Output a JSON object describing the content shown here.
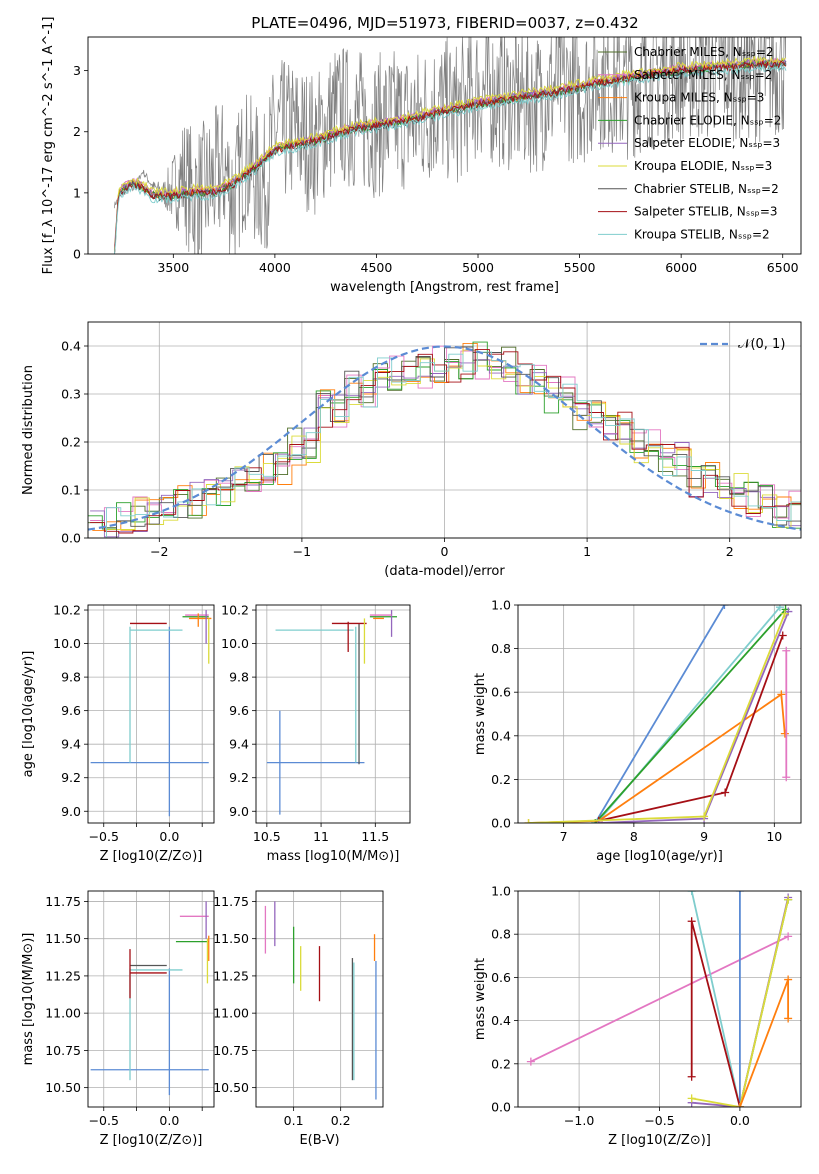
{
  "figure": {
    "title": "PLATE=0496, MJD=51973, FIBERID=0037, z=0.432"
  },
  "chart_data": [
    {
      "id": "spectrum",
      "type": "line",
      "xlabel": "wavelength [Angstrom, rest frame]",
      "ylabel": "Flux [f_λ 10^-17 erg cm^-2 s^-1 A^-1]",
      "xlim": [
        3080,
        6590
      ],
      "ylim": [
        0,
        3.55
      ],
      "xticks": [
        3500,
        4000,
        4500,
        5000,
        5500,
        6000,
        6500
      ],
      "yticks": [
        0,
        1,
        2,
        3
      ],
      "grid": false,
      "legend_position": "top-right",
      "data": {
        "x": [
          3210,
          3250,
          3300,
          3350,
          3400,
          3450,
          3500,
          3550,
          3600,
          3650,
          3700,
          3750,
          3800,
          3850,
          3900,
          3950,
          4000,
          4100,
          4200,
          4300,
          4400,
          4500,
          4600,
          4700,
          4800,
          4900,
          5000,
          5100,
          5200,
          5300,
          5400,
          5500,
          5600,
          5700,
          5800,
          5900,
          6000,
          6100,
          6200,
          6300,
          6400,
          6500
        ],
        "y": [
          0.8,
          1.0,
          1.05,
          1.35,
          1.1,
          1.0,
          1.05,
          1.3,
          0.9,
          1.0,
          1.2,
          1.4,
          0.9,
          1.6,
          1.3,
          1.1,
          2.0,
          2.0,
          1.8,
          2.3,
          2.2,
          2.1,
          2.2,
          2.2,
          2.4,
          2.3,
          2.7,
          2.6,
          2.5,
          2.5,
          2.8,
          2.6,
          2.9,
          2.7,
          2.8,
          3.0,
          3.0,
          3.0,
          3.1,
          3.0,
          3.0,
          3.1
        ],
        "noise_amplitude": [
          0.05,
          0.05,
          0.05,
          0.05,
          0.1,
          0.2,
          0.6,
          1.0,
          1.2,
          1.2,
          1.2,
          1.2,
          1.2,
          1.2,
          1.2,
          1.2,
          1.2,
          1.2,
          1.2,
          1.2,
          1.2,
          1.2,
          1.2,
          1.2,
          1.2,
          1.2,
          1.2,
          1.2,
          1.2,
          1.2,
          1.2,
          1.2,
          1.2,
          1.2,
          1.2,
          1.2,
          1.2,
          1.2,
          1.2,
          1.2,
          1.2,
          1.2
        ],
        "color": "#808080"
      },
      "model_base": {
        "x": [
          3210,
          3230,
          3250,
          3300,
          3350,
          3400,
          3450,
          3500,
          3600,
          3700,
          3800,
          3900,
          4000,
          4200,
          4400,
          4600,
          4800,
          5000,
          5200,
          5400,
          5600,
          5800,
          6000,
          6200,
          6400,
          6520
        ],
        "y": [
          0.0,
          0.95,
          1.05,
          1.15,
          1.08,
          0.95,
          0.95,
          0.95,
          1.0,
          1.0,
          1.15,
          1.4,
          1.7,
          1.85,
          2.05,
          2.15,
          2.3,
          2.45,
          2.55,
          2.65,
          2.8,
          2.9,
          3.0,
          3.05,
          3.1,
          3.1
        ]
      },
      "series": [
        {
          "name": "Chabrier MILES, N_SSP=2",
          "color": "#4f6d2a",
          "offset": 0.03
        },
        {
          "name": "Salpeter MILES, N_SSP=2",
          "color": "#e377c2",
          "offset": 0.05
        },
        {
          "name": "Kroupa MILES, N_SSP=3",
          "color": "#ff7f0e",
          "offset": 0.02
        },
        {
          "name": "Chabrier ELODIE, N_SSP=2",
          "color": "#2ca02c",
          "offset": 0.0
        },
        {
          "name": "Salpeter ELODIE, N_SSP=3",
          "color": "#9467bd",
          "offset": 0.04
        },
        {
          "name": "Kroupa ELODIE, N_SSP=3",
          "color": "#dbdb3a",
          "offset": 0.08
        },
        {
          "name": "Chabrier STELIB, N_SSP=2",
          "color": "#555555",
          "offset": -0.02
        },
        {
          "name": "Salpeter STELIB, N_SSP=3",
          "color": "#a50f15",
          "offset": 0.0
        },
        {
          "name": "Kroupa STELIB, N_SSP=2",
          "color": "#7fcdcd",
          "offset": -0.06
        }
      ]
    },
    {
      "id": "residuals",
      "type": "line",
      "xlabel": "(data-model)/error",
      "ylabel": "Normed distribution",
      "xlim": [
        -2.5,
        2.5
      ],
      "ylim": [
        0,
        0.45
      ],
      "xticks": [
        -2,
        -1,
        0,
        1,
        2
      ],
      "yticks": [
        0.0,
        0.1,
        0.2,
        0.3,
        0.4
      ],
      "grid": true,
      "legend_position": "top-right",
      "normal_curve": {
        "name": "𝒩(0, 1)",
        "color": "#5b8bd4"
      },
      "histogram_bins": {
        "x": [
          -2.5,
          -2.3,
          -2.1,
          -1.9,
          -1.7,
          -1.5,
          -1.3,
          -1.1,
          -0.9,
          -0.7,
          -0.5,
          -0.3,
          -0.1,
          0.1,
          0.3,
          0.5,
          0.7,
          0.9,
          1.1,
          1.3,
          1.5,
          1.7,
          1.9,
          2.1,
          2.3,
          2.5
        ],
        "y": [
          0.03,
          0.05,
          0.06,
          0.08,
          0.1,
          0.12,
          0.15,
          0.19,
          0.27,
          0.31,
          0.34,
          0.35,
          0.36,
          0.37,
          0.36,
          0.33,
          0.3,
          0.26,
          0.23,
          0.19,
          0.16,
          0.12,
          0.1,
          0.08,
          0.06,
          0.05
        ]
      },
      "series_colors": [
        "#4f6d2a",
        "#e377c2",
        "#ff7f0e",
        "#2ca02c",
        "#9467bd",
        "#dbdb3a",
        "#555555",
        "#a50f15",
        "#7fcdcd"
      ]
    },
    {
      "id": "age-vs-Z",
      "type": "scatter",
      "xlabel": "Z [log10(Z/Z⊙)]",
      "ylabel": "age [log10(age/yr)]",
      "xlim": [
        -0.62,
        0.34
      ],
      "ylim": [
        8.93,
        10.23
      ],
      "xticks": [
        -0.5,
        -0.25,
        0.0,
        0.25
      ],
      "xticklabels": [
        "−0.5",
        "",
        "0.0",
        ""
      ],
      "yticks": [
        9.0,
        9.2,
        9.4,
        9.6,
        9.8,
        10.0,
        10.2
      ],
      "grid": true,
      "segments": [
        {
          "color": "#5b8bd4",
          "x1": -0.6,
          "y1": 9.29,
          "x2": 0.3,
          "y2": 9.29
        },
        {
          "color": "#5b8bd4",
          "x1": 0.0,
          "y1": 8.97,
          "x2": 0.0,
          "y2": 10.1
        },
        {
          "color": "#7fcdcd",
          "x1": -0.3,
          "y1": 9.29,
          "x2": -0.3,
          "y2": 10.1
        },
        {
          "color": "#7fcdcd",
          "x1": -0.3,
          "y1": 10.08,
          "x2": 0.1,
          "y2": 10.08
        },
        {
          "color": "#a50f15",
          "x1": -0.3,
          "y1": 10.12,
          "x2": -0.02,
          "y2": 10.12
        },
        {
          "color": "#2ca02c",
          "x1": 0.1,
          "y1": 10.16,
          "x2": 0.3,
          "y2": 10.16
        },
        {
          "color": "#ff7f0e",
          "x1": 0.15,
          "y1": 10.15,
          "x2": 0.32,
          "y2": 10.15
        },
        {
          "color": "#e377c2",
          "x1": 0.12,
          "y1": 10.17,
          "x2": 0.3,
          "y2": 10.17
        },
        {
          "color": "#9467bd",
          "x1": 0.28,
          "y1": 10.0,
          "x2": 0.28,
          "y2": 10.2
        },
        {
          "color": "#dbdb3a",
          "x1": 0.3,
          "y1": 9.88,
          "x2": 0.3,
          "y2": 10.15
        },
        {
          "color": "#ff7f0e",
          "x1": 0.22,
          "y1": 10.1,
          "x2": 0.22,
          "y2": 10.18
        }
      ]
    },
    {
      "id": "age-vs-mass",
      "type": "scatter",
      "xlabel": "mass [log10(M/M⊙)]",
      "ylabel": "",
      "xlim": [
        10.4,
        11.82
      ],
      "ylim": [
        8.93,
        10.23
      ],
      "xticks": [
        10.5,
        11.0,
        11.5
      ],
      "yticks": [
        9.0,
        9.2,
        9.4,
        9.6,
        9.8,
        10.0,
        10.2
      ],
      "grid": true,
      "segments": [
        {
          "color": "#5b8bd4",
          "x1": 10.5,
          "y1": 9.29,
          "x2": 11.4,
          "y2": 9.29
        },
        {
          "color": "#5b8bd4",
          "x1": 10.62,
          "y1": 8.98,
          "x2": 10.62,
          "y2": 9.6
        },
        {
          "color": "#7fcdcd",
          "x1": 10.58,
          "y1": 10.08,
          "x2": 11.3,
          "y2": 10.08
        },
        {
          "color": "#7fcdcd",
          "x1": 11.32,
          "y1": 9.29,
          "x2": 11.32,
          "y2": 10.1
        },
        {
          "color": "#555555",
          "x1": 11.35,
          "y1": 9.28,
          "x2": 11.35,
          "y2": 10.12
        },
        {
          "color": "#a50f15",
          "x1": 11.1,
          "y1": 10.12,
          "x2": 11.42,
          "y2": 10.12
        },
        {
          "color": "#a50f15",
          "x1": 11.25,
          "y1": 9.95,
          "x2": 11.25,
          "y2": 10.13
        },
        {
          "color": "#dbdb3a",
          "x1": 11.4,
          "y1": 9.88,
          "x2": 11.4,
          "y2": 10.15
        },
        {
          "color": "#2ca02c",
          "x1": 11.45,
          "y1": 10.16,
          "x2": 11.7,
          "y2": 10.16
        },
        {
          "color": "#9467bd",
          "x1": 11.65,
          "y1": 10.04,
          "x2": 11.65,
          "y2": 10.2
        },
        {
          "color": "#e377c2",
          "x1": 11.45,
          "y1": 10.17,
          "x2": 11.65,
          "y2": 10.17
        },
        {
          "color": "#ff7f0e",
          "x1": 11.48,
          "y1": 10.15,
          "x2": 11.58,
          "y2": 10.15
        }
      ]
    },
    {
      "id": "weight-vs-age",
      "type": "line",
      "xlabel": "age [log10(age/yr)]",
      "ylabel": "mass weight",
      "xlim": [
        6.35,
        10.38
      ],
      "ylim": [
        0,
        1.0
      ],
      "xticks": [
        7,
        8,
        9,
        10
      ],
      "yticks": [
        0.0,
        0.2,
        0.4,
        0.6,
        0.8,
        1.0
      ],
      "grid": true,
      "series": [
        {
          "color": "#5b8bd4",
          "x": [
            7.45,
            9.29
          ],
          "y": [
            0.0,
            1.0
          ]
        },
        {
          "color": "#7fcdcd",
          "x": [
            7.5,
            10.08
          ],
          "y": [
            0.01,
            0.99
          ]
        },
        {
          "color": "#2ca02c",
          "x": [
            7.45,
            10.16
          ],
          "y": [
            0.0,
            0.98
          ]
        },
        {
          "color": "#ff7f0e",
          "x": [
            6.5,
            7.5,
            10.1,
            10.15
          ],
          "y": [
            0.0,
            0.01,
            0.59,
            0.41
          ]
        },
        {
          "color": "#a50f15",
          "x": [
            7.5,
            9.3,
            10.12
          ],
          "y": [
            0.01,
            0.14,
            0.86
          ]
        },
        {
          "color": "#9467bd",
          "x": [
            7.5,
            9.0,
            10.2
          ],
          "y": [
            0.0,
            0.02,
            0.97
          ]
        },
        {
          "color": "#dbdb3a",
          "x": [
            6.5,
            9.0,
            10.15
          ],
          "y": [
            0.0,
            0.03,
            0.96
          ]
        },
        {
          "color": "#e377c2",
          "x": [
            10.17,
            10.17
          ],
          "y": [
            0.21,
            0.79
          ]
        }
      ]
    },
    {
      "id": "mass-vs-Z",
      "type": "scatter",
      "xlabel": "Z [log10(Z/Z⊙)]",
      "ylabel": "mass [log10(M/M⊙)]",
      "xlim": [
        -0.62,
        0.34
      ],
      "ylim": [
        10.37,
        11.82
      ],
      "xticks": [
        -0.5,
        -0.25,
        0.0,
        0.25
      ],
      "xticklabels": [
        "−0.5",
        "",
        "0.0",
        ""
      ],
      "yticks": [
        10.5,
        10.75,
        11.0,
        11.25,
        11.5,
        11.75
      ],
      "grid": true,
      "segments": [
        {
          "color": "#5b8bd4",
          "x1": -0.6,
          "y1": 10.62,
          "x2": 0.3,
          "y2": 10.62
        },
        {
          "color": "#5b8bd4",
          "x1": 0.0,
          "y1": 10.45,
          "x2": 0.0,
          "y2": 11.3
        },
        {
          "color": "#7fcdcd",
          "x1": -0.3,
          "y1": 10.55,
          "x2": -0.3,
          "y2": 11.3
        },
        {
          "color": "#7fcdcd",
          "x1": -0.3,
          "y1": 11.29,
          "x2": 0.1,
          "y2": 11.29
        },
        {
          "color": "#555555",
          "x1": -0.3,
          "y1": 11.32,
          "x2": -0.02,
          "y2": 11.32
        },
        {
          "color": "#a50f15",
          "x1": -0.3,
          "y1": 11.27,
          "x2": -0.02,
          "y2": 11.27
        },
        {
          "color": "#a50f15",
          "x1": -0.3,
          "y1": 11.1,
          "x2": -0.3,
          "y2": 11.43
        },
        {
          "color": "#2ca02c",
          "x1": 0.05,
          "y1": 11.48,
          "x2": 0.3,
          "y2": 11.48
        },
        {
          "color": "#e377c2",
          "x1": 0.08,
          "y1": 11.65,
          "x2": 0.3,
          "y2": 11.65
        },
        {
          "color": "#9467bd",
          "x1": 0.28,
          "y1": 11.5,
          "x2": 0.28,
          "y2": 11.75
        },
        {
          "color": "#dbdb3a",
          "x1": 0.29,
          "y1": 11.2,
          "x2": 0.29,
          "y2": 11.5
        },
        {
          "color": "#ff7f0e",
          "x1": 0.3,
          "y1": 11.35,
          "x2": 0.3,
          "y2": 11.52
        }
      ]
    },
    {
      "id": "mass-vs-ebv",
      "type": "scatter",
      "xlabel": "E(B-V)",
      "ylabel": "",
      "xlim": [
        0.02,
        0.29
      ],
      "ylim": [
        10.37,
        11.82
      ],
      "xticks": [
        0.1,
        0.2
      ],
      "yticks": [
        10.5,
        10.75,
        11.0,
        11.25,
        11.5,
        11.75
      ],
      "grid": true,
      "segments": [
        {
          "color": "#e377c2",
          "x1": 0.04,
          "y1": 11.4,
          "x2": 0.04,
          "y2": 11.72
        },
        {
          "color": "#9467bd",
          "x1": 0.06,
          "y1": 11.45,
          "x2": 0.06,
          "y2": 11.75
        },
        {
          "color": "#2ca02c",
          "x1": 0.1,
          "y1": 11.2,
          "x2": 0.1,
          "y2": 11.58
        },
        {
          "color": "#dbdb3a",
          "x1": 0.115,
          "y1": 11.15,
          "x2": 0.115,
          "y2": 11.45
        },
        {
          "color": "#a50f15",
          "x1": 0.155,
          "y1": 11.08,
          "x2": 0.155,
          "y2": 11.45
        },
        {
          "color": "#555555",
          "x1": 0.225,
          "y1": 10.55,
          "x2": 0.225,
          "y2": 11.37
        },
        {
          "color": "#7fcdcd",
          "x1": 0.228,
          "y1": 10.55,
          "x2": 0.228,
          "y2": 11.34
        },
        {
          "color": "#5b8bd4",
          "x1": 0.275,
          "y1": 10.42,
          "x2": 0.275,
          "y2": 11.35
        },
        {
          "color": "#ff7f0e",
          "x1": 0.272,
          "y1": 11.35,
          "x2": 0.272,
          "y2": 11.53
        }
      ]
    },
    {
      "id": "weight-vs-Z",
      "type": "line",
      "xlabel": "Z [log10(Z/Z⊙)]",
      "ylabel": "mass weight",
      "xlim": [
        -1.38,
        0.38
      ],
      "ylim": [
        0,
        1.0
      ],
      "xticks": [
        -1.0,
        -0.5,
        0.0
      ],
      "xticklabels": [
        "−1.0",
        "−0.5",
        "0.0"
      ],
      "yticks": [
        0.0,
        0.2,
        0.4,
        0.6,
        0.8,
        1.0
      ],
      "grid": true,
      "series": [
        {
          "color": "#e377c2",
          "x": [
            -1.3,
            0.3
          ],
          "y": [
            0.21,
            0.79
          ]
        },
        {
          "color": "#7fcdcd",
          "x": [
            -0.3,
            0.0,
            -0.3
          ],
          "y": [
            1.0,
            0.0,
            1.0
          ]
        },
        {
          "color": "#5b8bd4",
          "x": [
            0.0,
            0.0
          ],
          "y": [
            0.0,
            1.0
          ]
        },
        {
          "color": "#a50f15",
          "x": [
            -0.3,
            -0.3,
            0.0
          ],
          "y": [
            0.14,
            0.86,
            0.0
          ]
        },
        {
          "color": "#2ca02c",
          "x": [
            0.0,
            0.3
          ],
          "y": [
            0.0,
            0.96
          ]
        },
        {
          "color": "#9467bd",
          "x": [
            -0.3,
            0.0,
            0.3
          ],
          "y": [
            0.02,
            0.0,
            0.97
          ]
        },
        {
          "color": "#dbdb3a",
          "x": [
            -0.3,
            0.0,
            0.3
          ],
          "y": [
            0.04,
            0.0,
            0.96
          ]
        },
        {
          "color": "#ff7f0e",
          "x": [
            0.0,
            0.3,
            0.3
          ],
          "y": [
            0.0,
            0.59,
            0.41
          ]
        }
      ]
    }
  ]
}
